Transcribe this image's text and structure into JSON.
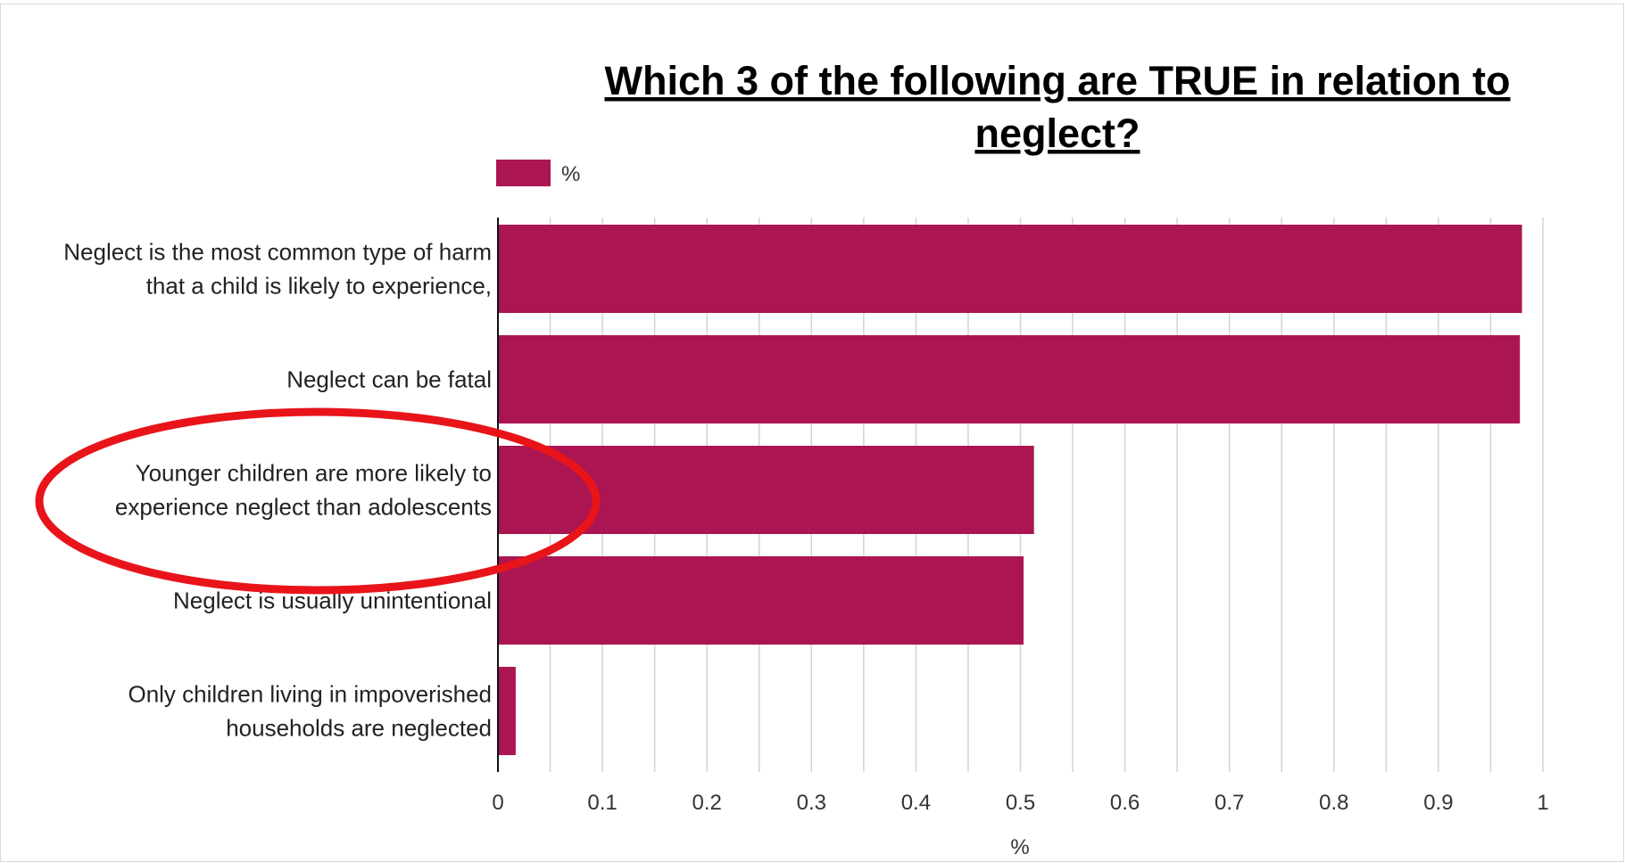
{
  "chart_data": {
    "type": "bar",
    "orientation": "horizontal",
    "title_lines": [
      "Which 3 of the following are TRUE in relation to",
      "neglect?"
    ],
    "legend": {
      "label": "%",
      "placement": "top-left"
    },
    "xlabel": "%",
    "xlim": [
      0,
      1
    ],
    "xticks": [
      "0",
      "0.1",
      "0.2",
      "0.3",
      "0.4",
      "0.5",
      "0.6",
      "0.7",
      "0.8",
      "0.9",
      "1"
    ],
    "grid": true,
    "categories": [
      [
        "Neglect is the most common type of harm",
        "that a child is likely to experience,"
      ],
      [
        "Neglect can be fatal"
      ],
      [
        "Younger children are more likely to",
        "experience neglect than adolescents"
      ],
      [
        "Neglect is usually unintentional"
      ],
      [
        "Only children living in impoverished",
        "households are neglected"
      ]
    ],
    "series": [
      {
        "name": "%",
        "values": [
          0.98,
          0.978,
          0.513,
          0.503,
          0.017
        ]
      }
    ],
    "annotations": [
      {
        "type": "ellipse",
        "target_category_index": 2,
        "color": "#e8141a"
      }
    ]
  },
  "colors": {
    "bar": "#ab1552",
    "grid": "#d3d3d3",
    "axis": "#111111",
    "highlight": "#e8141a"
  }
}
